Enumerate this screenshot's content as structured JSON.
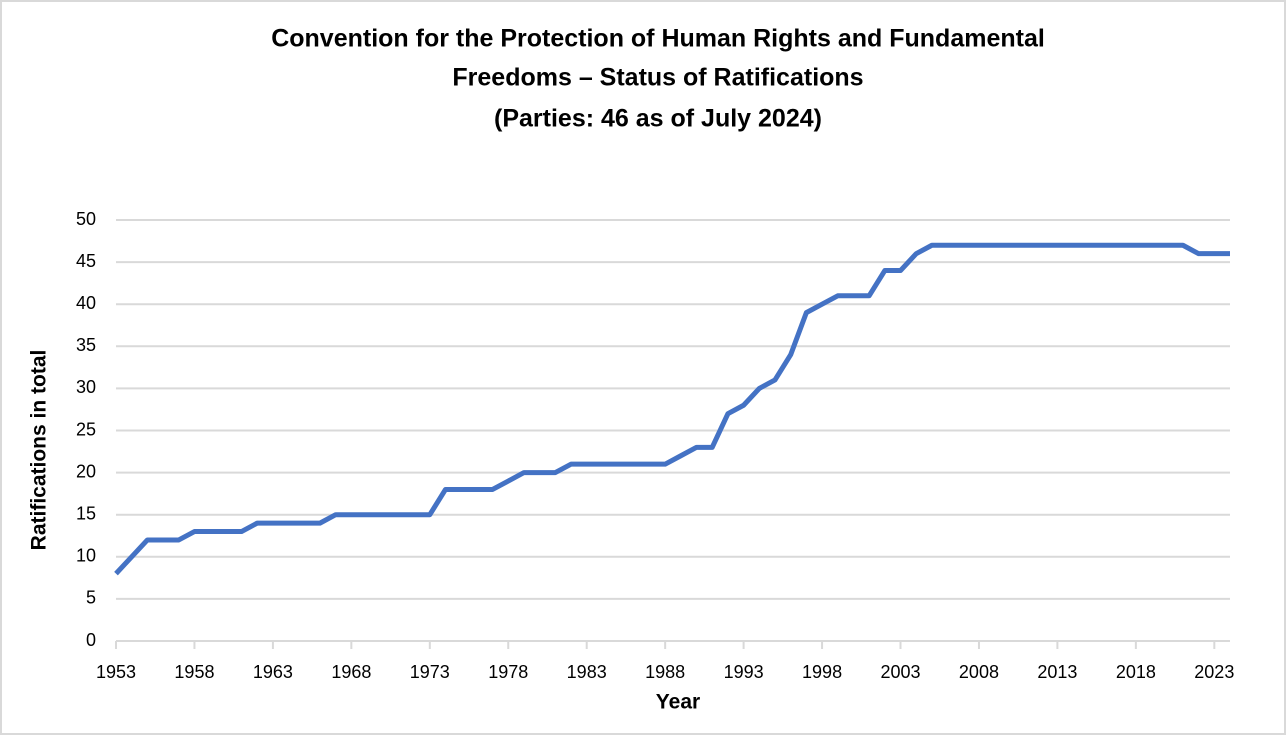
{
  "chart_data": {
    "type": "line",
    "title": [
      "Convention for the Protection of Human Rights and Fundamental",
      "Freedoms – Status of Ratifications",
      "(Parties: 46 as of July 2024)"
    ],
    "x_label": "Year",
    "y_label": "Ratifications in total",
    "x": [
      1953,
      1954,
      1955,
      1956,
      1957,
      1958,
      1959,
      1960,
      1961,
      1962,
      1963,
      1964,
      1965,
      1966,
      1967,
      1968,
      1969,
      1970,
      1971,
      1972,
      1973,
      1974,
      1975,
      1976,
      1977,
      1978,
      1979,
      1980,
      1981,
      1982,
      1983,
      1984,
      1985,
      1986,
      1987,
      1988,
      1989,
      1990,
      1991,
      1992,
      1993,
      1994,
      1995,
      1996,
      1997,
      1998,
      1999,
      2000,
      2001,
      2002,
      2003,
      2004,
      2005,
      2006,
      2007,
      2008,
      2009,
      2010,
      2011,
      2012,
      2013,
      2014,
      2015,
      2016,
      2017,
      2018,
      2019,
      2020,
      2021,
      2022,
      2023,
      2024
    ],
    "series": [
      {
        "name": "Ratifications",
        "color": "#4472c4",
        "values": [
          8,
          10,
          12,
          12,
          12,
          13,
          13,
          13,
          13,
          14,
          14,
          14,
          14,
          14,
          15,
          15,
          15,
          15,
          15,
          15,
          15,
          18,
          18,
          18,
          18,
          19,
          20,
          20,
          20,
          21,
          21,
          21,
          21,
          21,
          21,
          21,
          22,
          23,
          23,
          27,
          28,
          30,
          31,
          34,
          39,
          40,
          41,
          41,
          41,
          44,
          44,
          46,
          47,
          47,
          47,
          47,
          47,
          47,
          47,
          47,
          47,
          47,
          47,
          47,
          47,
          47,
          47,
          47,
          47,
          46,
          46,
          46
        ]
      }
    ],
    "xlim": [
      1953,
      2024
    ],
    "xticks": [
      1953,
      1958,
      1963,
      1968,
      1973,
      1978,
      1983,
      1988,
      1993,
      1998,
      2003,
      2008,
      2013,
      2018,
      2023
    ],
    "ylim": [
      0,
      50
    ],
    "yticks": [
      0,
      5,
      10,
      15,
      20,
      25,
      30,
      35,
      40,
      45,
      50
    ],
    "grid": true
  }
}
